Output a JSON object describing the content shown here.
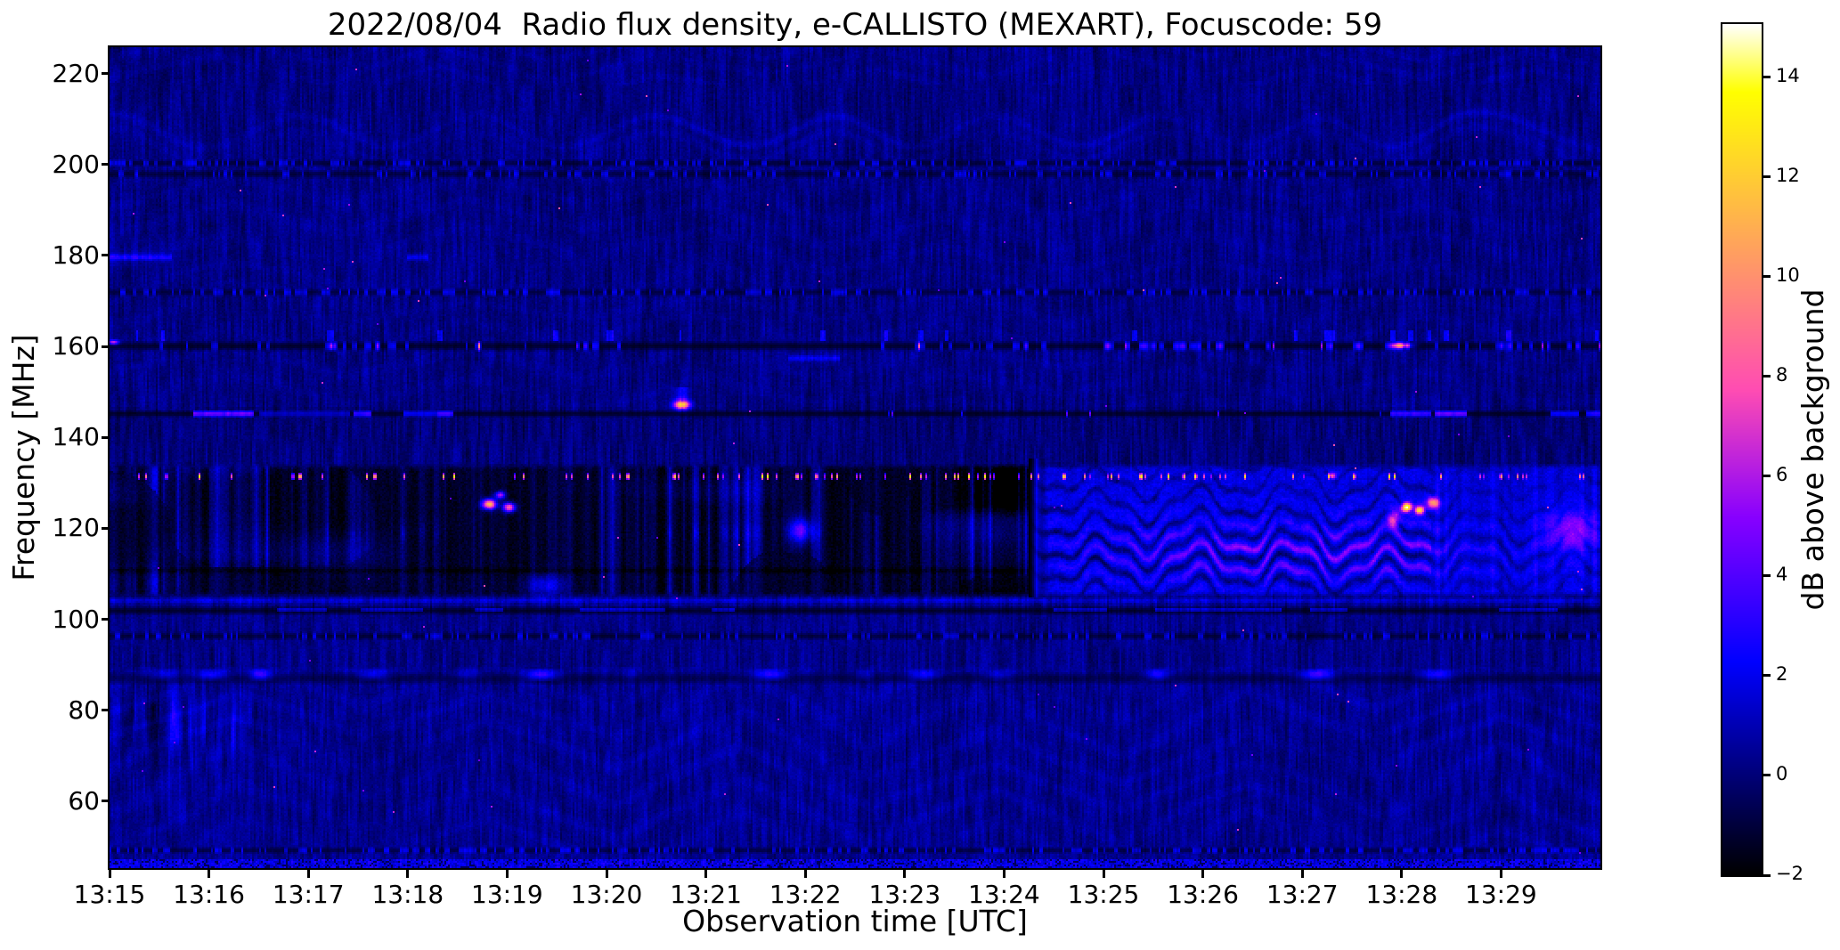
{
  "chart_data": {
    "type": "heatmap",
    "title": "2022/08/04  Radio flux density, e-CALLISTO (MEXART), Focuscode: 59",
    "xlabel": "Observation time [UTC]",
    "ylabel": "Frequency [MHz]",
    "x_ticks": [
      "13:15",
      "13:16",
      "13:17",
      "13:18",
      "13:19",
      "13:20",
      "13:21",
      "13:22",
      "13:23",
      "13:24",
      "13:25",
      "13:26",
      "13:27",
      "13:28",
      "13:29"
    ],
    "x_span_minutes": 15,
    "y_ticks": [
      220,
      200,
      180,
      160,
      140,
      120,
      100,
      80,
      60
    ],
    "freq_top_mhz": 225.8,
    "freq_bottom_mhz": 45.3,
    "colorbar": {
      "label": "dB above background",
      "ticks": [
        -2,
        0,
        2,
        4,
        6,
        8,
        10,
        12,
        14
      ],
      "vmin": -2,
      "vmax": 15.07,
      "colormap": "gnuplot2"
    },
    "interference_lines_mhz": [
      200.3,
      197.9,
      171.9,
      160.1,
      145.2,
      101.9,
      96.3,
      87.0,
      49.2
    ],
    "events": [
      {
        "t": 3.82,
        "f": 125.3,
        "st": 0.07,
        "sf": 1.1,
        "amp": 12.5
      },
      {
        "t": 4.02,
        "f": 124.6,
        "st": 0.06,
        "sf": 1.0,
        "amp": 10
      },
      {
        "t": 3.93,
        "f": 127.3,
        "st": 0.05,
        "sf": 0.8,
        "amp": 7
      },
      {
        "t": 4.38,
        "f": 107.5,
        "st": 0.2,
        "sf": 2.4,
        "amp": 3.2
      },
      {
        "t": 6.95,
        "f": 119.5,
        "st": 0.12,
        "sf": 2.6,
        "amp": 5.2
      },
      {
        "t": 13.05,
        "f": 124.6,
        "st": 0.05,
        "sf": 1.0,
        "amp": 14.5
      },
      {
        "t": 13.18,
        "f": 124.0,
        "st": 0.05,
        "sf": 0.9,
        "amp": 12.5
      },
      {
        "t": 13.32,
        "f": 125.6,
        "st": 0.06,
        "sf": 1.2,
        "amp": 9
      },
      {
        "t": 12.92,
        "f": 122.0,
        "st": 0.06,
        "sf": 1.8,
        "amp": 6
      },
      {
        "t": 12.3,
        "f": 131.5,
        "st": 0.04,
        "sf": 0.7,
        "amp": 7
      },
      {
        "t": 13.0,
        "f": 160.2,
        "st": 0.1,
        "sf": 0.6,
        "amp": 8.5
      },
      {
        "t": 14.72,
        "f": 119.5,
        "st": 0.28,
        "sf": 4.0,
        "amp": 3.4
      },
      {
        "t": 0.04,
        "f": 160.9,
        "st": 0.05,
        "sf": 0.5,
        "amp": 7
      }
    ],
    "line145_segments": [
      [
        0.85,
        1.45,
        7.0
      ],
      [
        1.5,
        2.42,
        3.0
      ],
      [
        2.45,
        2.64,
        5.5
      ],
      [
        2.95,
        3.3,
        4.0
      ],
      [
        3.3,
        3.45,
        6.0
      ],
      [
        12.88,
        13.3,
        5.5
      ],
      [
        13.34,
        13.66,
        6.5
      ],
      [
        14.5,
        14.78,
        4.5
      ],
      [
        14.85,
        15.0,
        5.0
      ]
    ],
    "blue180_segments": [
      [
        0.0,
        0.62,
        2.4
      ],
      [
        3.0,
        3.2,
        2.2
      ]
    ],
    "blue157_segment": [
      6.82,
      7.34,
      1.9
    ],
    "yellow_blip": {
      "t": 5.76,
      "f": 147.2,
      "amp": 12.5
    },
    "blob_row_87": {
      "freq": 87.8,
      "centers": [
        0.55,
        1.02,
        1.52,
        2.66,
        3.6,
        4.35,
        5.25,
        6.1,
        6.65,
        7.6,
        8.2,
        8.95,
        9.9,
        10.55,
        11.3,
        12.15,
        13.35,
        14.2
      ]
    },
    "speckle_row_mhz": 131.4,
    "burst_window": {
      "t_start_min": 9.25,
      "freq_low": 105,
      "freq_high": 133.5
    }
  }
}
